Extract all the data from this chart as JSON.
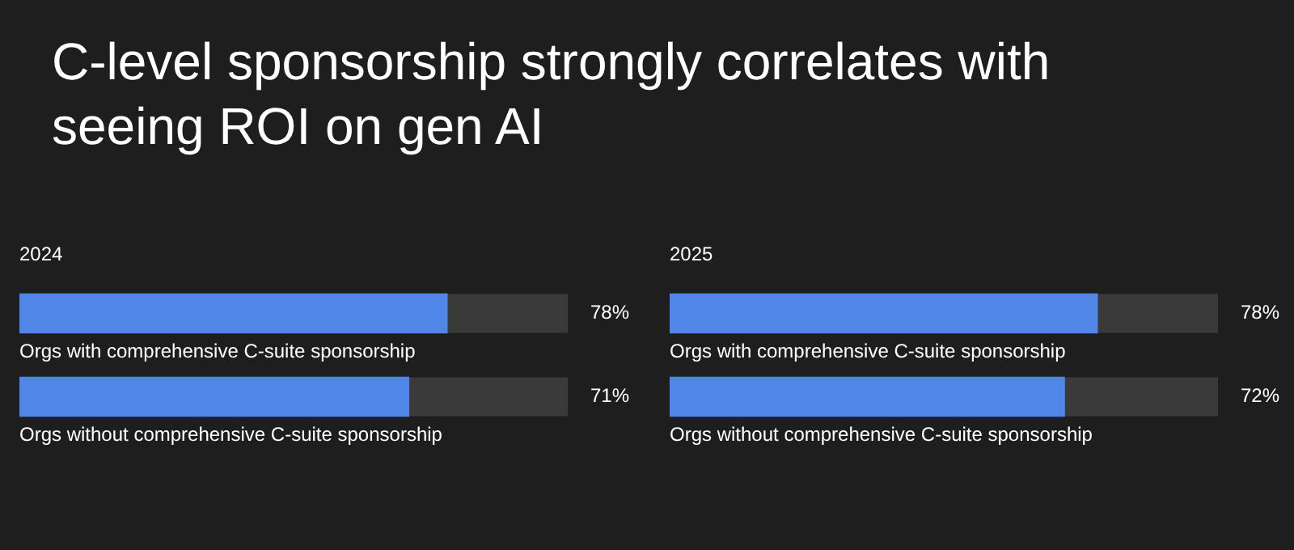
{
  "chart_data": [
    {
      "type": "bar",
      "orientation": "horizontal",
      "title": "2024",
      "annotations": [
        "C-level sponsorship strongly correlates with seeing ROI on gen AI"
      ],
      "categories": [
        "Orgs with comprehensive C-suite sponsorship",
        "Orgs without comprehensive C-suite sponsorship"
      ],
      "values": [
        78,
        71
      ],
      "value_labels": [
        "78%",
        "71%"
      ],
      "color": "#4f86e8",
      "xlim": [
        0,
        100
      ],
      "tick_labels": false
    },
    {
      "type": "bar",
      "orientation": "horizontal",
      "title": "2025",
      "categories": [
        "Orgs with comprehensive C-suite sponsorship",
        "Orgs without comprehensive C-suite sponsorship"
      ],
      "values": [
        78,
        72
      ],
      "value_labels": [
        "78%",
        "72%"
      ],
      "color": "#4f86e8",
      "xlim": [
        0,
        100
      ],
      "tick_labels": false
    }
  ]
}
